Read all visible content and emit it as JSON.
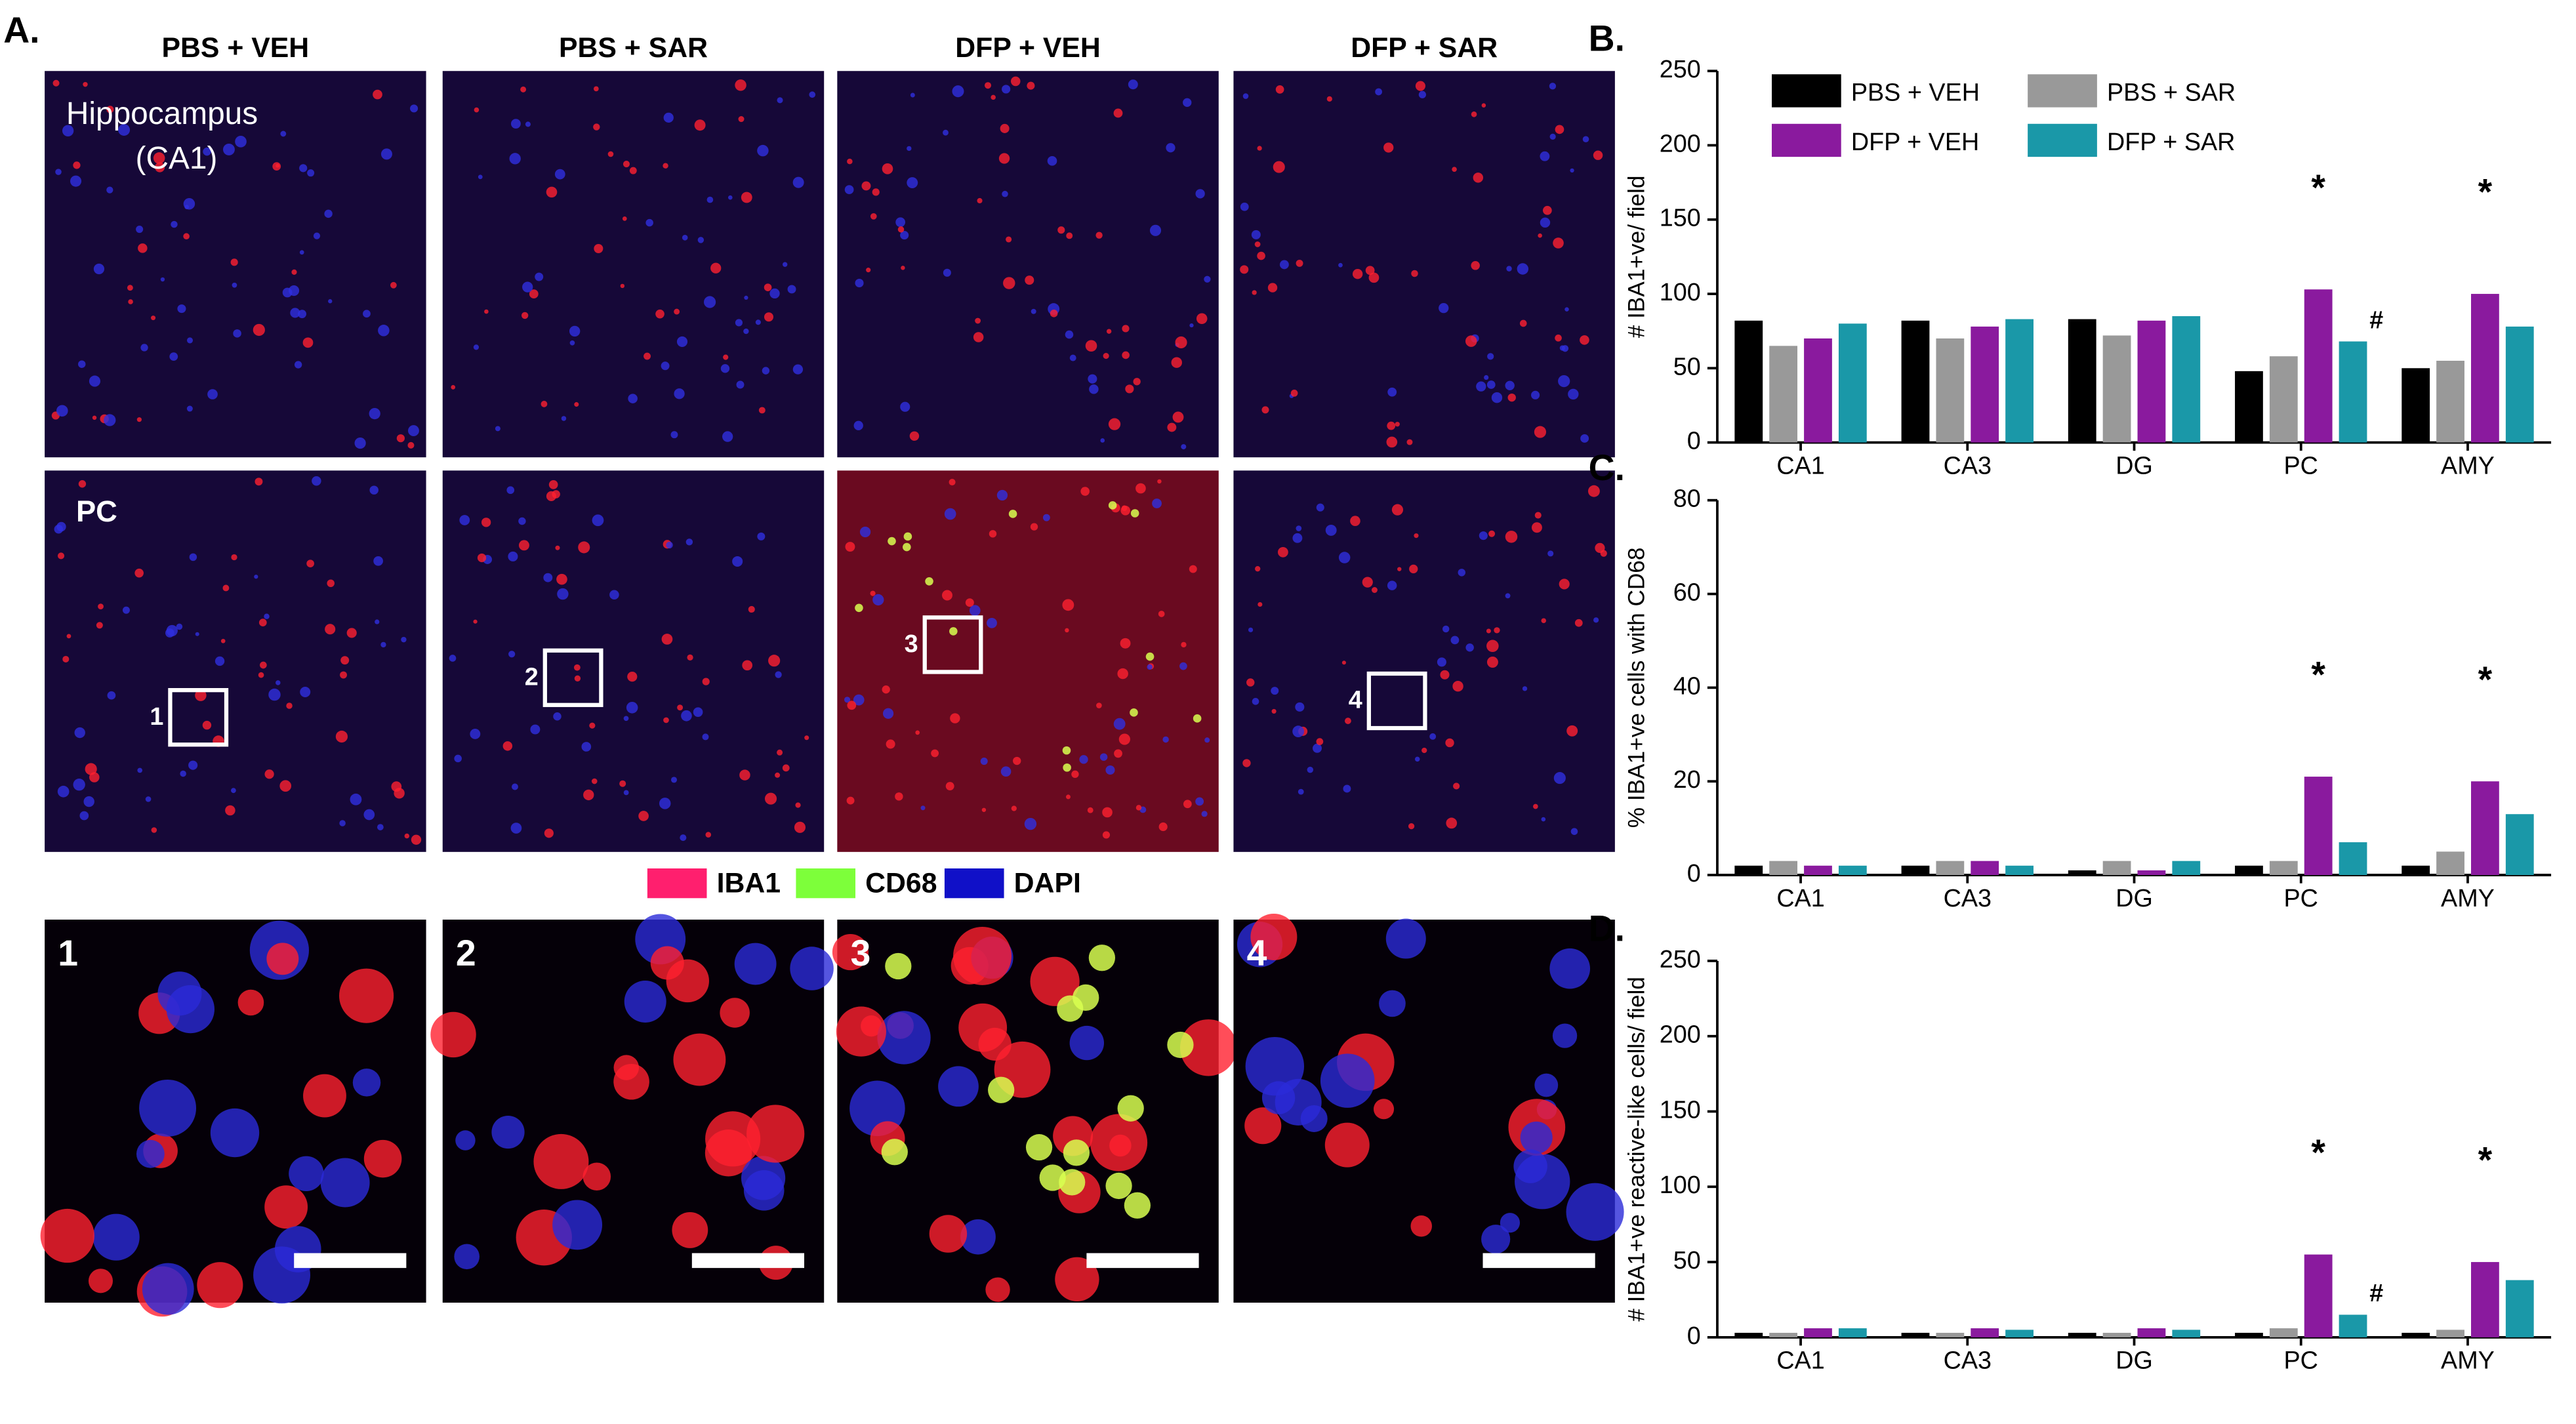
{
  "figure": {
    "panel_label": "A.",
    "columns": [
      "PBS + VEH",
      "PBS + SAR",
      "DFP + VEH",
      "DFP + SAR"
    ],
    "row1_label": [
      "Hippocampus",
      "(CA1)"
    ],
    "row2_label": "PC",
    "box_labels": [
      "1",
      "2",
      "3",
      "4"
    ],
    "legend": [
      {
        "name": "IBA1",
        "color": "#ff1f6e"
      },
      {
        "name": "CD68",
        "color": "#7dff3a"
      },
      {
        "name": "DAPI",
        "color": "#1010c8"
      }
    ]
  },
  "chart_data": [
    {
      "type": "bar",
      "panel_label": "B.",
      "ylabel": "# IBA1+ve/ field",
      "categories": [
        "CA1",
        "CA3",
        "DG",
        "PC",
        "AMY"
      ],
      "legend": "top",
      "series": [
        {
          "name": "PBS + VEH",
          "color": "#000000",
          "values": [
            82,
            82,
            83,
            48,
            50
          ]
        },
        {
          "name": "PBS + SAR",
          "color": "#999999",
          "values": [
            65,
            70,
            72,
            58,
            55
          ]
        },
        {
          "name": "DFP + VEH",
          "color": "#8a1a9e",
          "values": [
            70,
            78,
            82,
            103,
            100
          ]
        },
        {
          "name": "DFP + SAR",
          "color": "#1a98a8",
          "values": [
            80,
            83,
            85,
            68,
            78
          ]
        }
      ],
      "ylim": [
        0,
        250
      ],
      "yticks": [
        0,
        50,
        100,
        150,
        200,
        250
      ],
      "annotations": [
        {
          "text": "*",
          "category": "PC",
          "series": "DFP + VEH"
        },
        {
          "text": "#",
          "category": "PC",
          "series": "DFP + SAR"
        },
        {
          "text": "*",
          "category": "AMY",
          "series": "DFP + VEH"
        }
      ]
    },
    {
      "type": "bar",
      "panel_label": "C.",
      "ylabel": "% IBA1+ve cells with CD68",
      "categories": [
        "CA1",
        "CA3",
        "DG",
        "PC",
        "AMY"
      ],
      "series": [
        {
          "name": "PBS + VEH",
          "color": "#000000",
          "values": [
            2,
            2,
            1,
            2,
            2
          ]
        },
        {
          "name": "PBS + SAR",
          "color": "#999999",
          "values": [
            3,
            3,
            3,
            3,
            5
          ]
        },
        {
          "name": "DFP + VEH",
          "color": "#8a1a9e",
          "values": [
            2,
            3,
            1,
            21,
            20
          ]
        },
        {
          "name": "DFP + SAR",
          "color": "#1a98a8",
          "values": [
            2,
            2,
            3,
            7,
            13
          ]
        }
      ],
      "ylim": [
        0,
        80
      ],
      "yticks": [
        0,
        20,
        40,
        60,
        80
      ],
      "annotations": [
        {
          "text": "*",
          "category": "PC",
          "series": "DFP + VEH"
        },
        {
          "text": "*",
          "category": "AMY",
          "series": "DFP + VEH"
        }
      ]
    },
    {
      "type": "bar",
      "panel_label": "D.",
      "ylabel": "# IBA1+ve reactive-like cells/ field",
      "categories": [
        "CA1",
        "CA3",
        "DG",
        "PC",
        "AMY"
      ],
      "series": [
        {
          "name": "PBS + VEH",
          "color": "#000000",
          "values": [
            3,
            3,
            3,
            3,
            3
          ]
        },
        {
          "name": "PBS + SAR",
          "color": "#999999",
          "values": [
            3,
            3,
            3,
            6,
            5
          ]
        },
        {
          "name": "DFP + VEH",
          "color": "#8a1a9e",
          "values": [
            6,
            6,
            6,
            55,
            50
          ]
        },
        {
          "name": "DFP + SAR",
          "color": "#1a98a8",
          "values": [
            6,
            5,
            5,
            15,
            38
          ]
        }
      ],
      "ylim": [
        0,
        250
      ],
      "yticks": [
        0,
        50,
        100,
        150,
        200,
        250
      ],
      "annotations": [
        {
          "text": "*",
          "category": "PC",
          "series": "DFP + VEH"
        },
        {
          "text": "#",
          "category": "PC",
          "series": "DFP + SAR"
        },
        {
          "text": "*",
          "category": "AMY",
          "series": "DFP + VEH"
        }
      ]
    }
  ]
}
